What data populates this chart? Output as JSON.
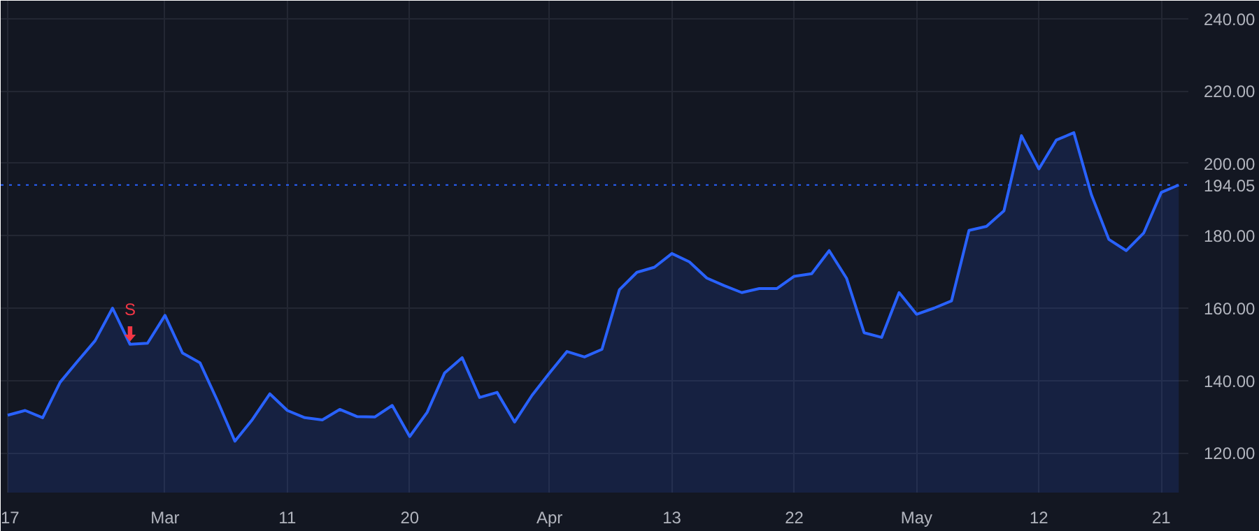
{
  "chart_data": {
    "type": "area",
    "categories": [
      "17",
      null,
      null,
      null,
      null,
      null,
      null,
      null,
      null,
      "Mar",
      null,
      null,
      null,
      null,
      null,
      null,
      "11",
      null,
      null,
      null,
      null,
      null,
      null,
      "20",
      null,
      null,
      null,
      null,
      null,
      null,
      null,
      "Apr",
      null,
      null,
      null,
      null,
      null,
      null,
      "13",
      null,
      null,
      null,
      null,
      null,
      null,
      "22",
      null,
      null,
      null,
      null,
      null,
      null,
      "May",
      null,
      null,
      null,
      null,
      null,
      null,
      "12",
      null,
      null,
      null,
      null,
      null,
      null,
      "21",
      null
    ],
    "series": [
      {
        "color": "#2962ff",
        "values": [
          130.4,
          131.7,
          129.7,
          139.5,
          145.3,
          151.0,
          160.0,
          150.0,
          150.3,
          158.0,
          147.6,
          144.9,
          134.4,
          123.2,
          129.2,
          136.3,
          131.7,
          129.7,
          129.1,
          132.0,
          130.0,
          129.9,
          133.1,
          124.5,
          131.2,
          142.1,
          146.3,
          135.3,
          136.7,
          128.5,
          135.9,
          142.1,
          148.0,
          146.5,
          148.6,
          165.1,
          169.9,
          171.3,
          175.1,
          172.8,
          168.3,
          166.2,
          164.3,
          165.4,
          165.4,
          168.8,
          169.5,
          175.9,
          168.2,
          153.2,
          151.9,
          164.3,
          158.3,
          160.0,
          162.0,
          181.5,
          182.6,
          186.9,
          207.7,
          198.5,
          206.5,
          208.5,
          191.4,
          179.0,
          175.9,
          180.8,
          192.0,
          194.05
        ]
      }
    ],
    "ylim": [
      109,
      245
    ],
    "yticks": [
      {
        "value": 120,
        "label": "120.00"
      },
      {
        "value": 140,
        "label": "140.00"
      },
      {
        "value": 160,
        "label": "160.00"
      },
      {
        "value": 180,
        "label": "180.00"
      },
      {
        "value": 200,
        "label": "200.00"
      },
      {
        "value": 220,
        "label": "220.00"
      },
      {
        "value": 240,
        "label": "240.00"
      }
    ],
    "ref_lines": [
      {
        "axis": "y",
        "value": 194.05,
        "label": "194.05",
        "color": "#2962ff",
        "line_style": "dotted"
      }
    ],
    "annotations": [
      {
        "text": "S",
        "y": 150.0
      }
    ],
    "grid": true,
    "marker": "none",
    "line_style": "solid"
  }
}
